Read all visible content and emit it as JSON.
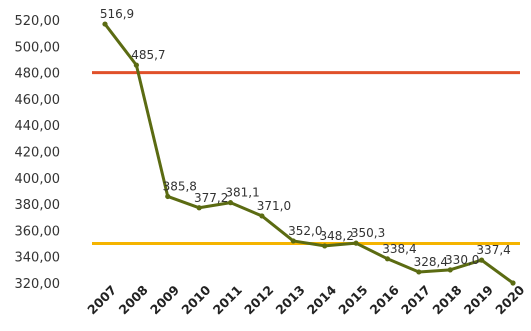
{
  "chart_data": {
    "type": "line",
    "x": [
      "2007",
      "2008",
      "2009",
      "2010",
      "2011",
      "2012",
      "2013",
      "2014",
      "2015",
      "2016",
      "2017",
      "2018",
      "2019",
      "2020"
    ],
    "series": [
      {
        "values": [
          516.9,
          485.7,
          385.8,
          377.2,
          381.1,
          371.0,
          352.0,
          348.2,
          350.3,
          338.4,
          328.4,
          330.0,
          337.4,
          320.0
        ],
        "labels": [
          "516,9",
          "485,7",
          "385,8",
          "377,2",
          "381,1",
          "371,0",
          "352,0",
          "348,2",
          "350,3",
          "338,4",
          "328,4",
          "330,0",
          "337,4",
          ""
        ],
        "color": "#5b6b12"
      }
    ],
    "reference_lines": [
      {
        "value": 480,
        "color": "#e0502a"
      },
      {
        "value": 350,
        "color": "#f5b400"
      }
    ],
    "ylim": [
      320,
      520
    ],
    "yticks": [
      "320,00",
      "340,00",
      "360,00",
      "380,00",
      "400,00",
      "420,00",
      "440,00",
      "460,00",
      "480,00",
      "500,00",
      "520,00"
    ],
    "grid": false,
    "legend": "none",
    "title": "",
    "xlabel": "",
    "ylabel": ""
  }
}
